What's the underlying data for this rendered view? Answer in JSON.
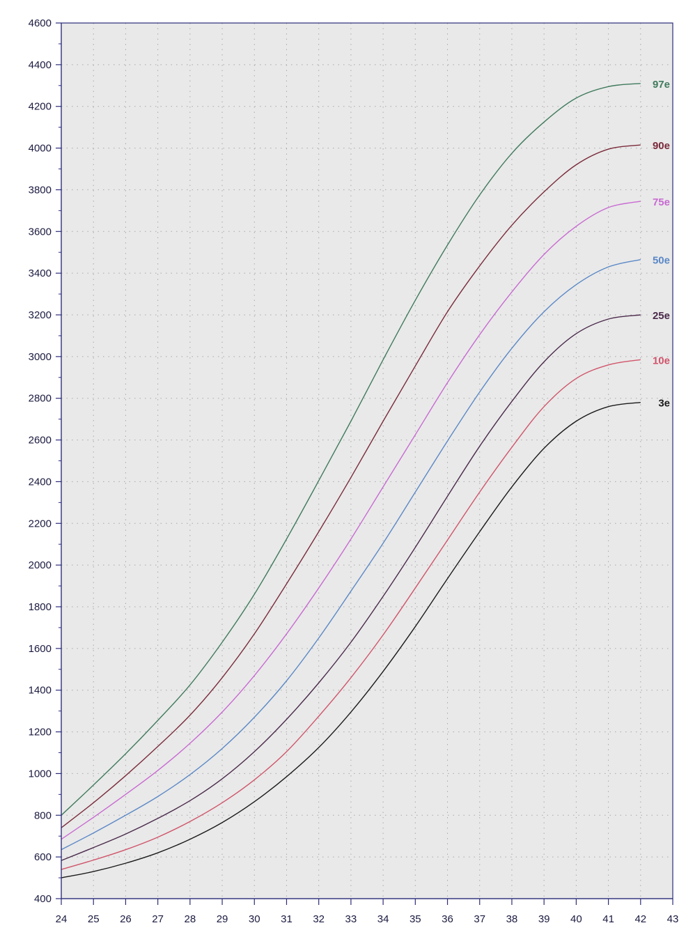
{
  "chart_data": {
    "type": "line",
    "title": "",
    "xlabel": "",
    "ylabel": "",
    "xlim": [
      24,
      43
    ],
    "ylim": [
      400,
      4600
    ],
    "x_ticks": [
      "24",
      "25",
      "26",
      "27",
      "28",
      "29",
      "30",
      "31",
      "32",
      "33",
      "34",
      "35",
      "36",
      "37",
      "38",
      "39",
      "40",
      "41",
      "42",
      "43"
    ],
    "y_ticks": [
      "400",
      "600",
      "800",
      "1000",
      "1200",
      "1400",
      "1600",
      "1800",
      "2000",
      "2200",
      "2400",
      "2600",
      "2800",
      "3000",
      "3200",
      "3400",
      "3600",
      "3800",
      "4000",
      "4200",
      "4400",
      "4600"
    ],
    "grid": true,
    "x": [
      24,
      25,
      26,
      27,
      28,
      29,
      30,
      31,
      32,
      33,
      34,
      35,
      36,
      37,
      38,
      39,
      40,
      41,
      42
    ],
    "series": [
      {
        "name": "97e",
        "color": "#3f7a5c",
        "values": [
          800,
          945,
          1095,
          1255,
          1425,
          1630,
          1860,
          2125,
          2405,
          2690,
          2985,
          3270,
          3535,
          3775,
          3975,
          4125,
          4240,
          4295,
          4310
        ]
      },
      {
        "name": "90e",
        "color": "#7a2a3a",
        "values": [
          740,
          860,
          990,
          1130,
          1280,
          1460,
          1670,
          1910,
          2160,
          2420,
          2690,
          2955,
          3215,
          3435,
          3630,
          3790,
          3920,
          3995,
          4015
        ]
      },
      {
        "name": "75e",
        "color": "#c86ad2",
        "values": [
          685,
          790,
          900,
          1015,
          1145,
          1295,
          1470,
          1670,
          1890,
          2125,
          2375,
          2625,
          2875,
          3105,
          3310,
          3490,
          3625,
          3715,
          3745
        ]
      },
      {
        "name": "50e",
        "color": "#5a88c6",
        "values": [
          635,
          715,
          800,
          890,
          995,
          1120,
          1270,
          1445,
          1650,
          1875,
          2105,
          2350,
          2595,
          2830,
          3040,
          3215,
          3345,
          3430,
          3465
        ]
      },
      {
        "name": "25e",
        "color": "#4a2a4a",
        "values": [
          583,
          645,
          710,
          785,
          870,
          975,
          1105,
          1260,
          1435,
          1630,
          1850,
          2085,
          2330,
          2570,
          2785,
          2975,
          3110,
          3180,
          3200
        ]
      },
      {
        "name": "10e",
        "color": "#d0546a",
        "values": [
          540,
          585,
          635,
          695,
          770,
          860,
          970,
          1105,
          1275,
          1460,
          1665,
          1890,
          2120,
          2350,
          2565,
          2760,
          2895,
          2960,
          2985
        ]
      },
      {
        "name": "3e",
        "color": "#1a1a1a",
        "values": [
          500,
          530,
          570,
          620,
          685,
          765,
          865,
          985,
          1125,
          1295,
          1490,
          1705,
          1935,
          2160,
          2375,
          2560,
          2690,
          2760,
          2780
        ]
      }
    ]
  }
}
